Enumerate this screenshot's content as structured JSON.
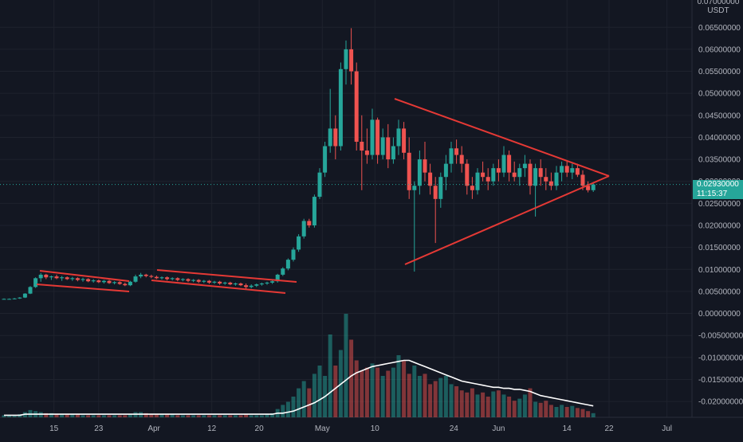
{
  "chart_data": {
    "type": "candlestick",
    "title": "",
    "unit_label": "USDT",
    "top_label": "0.07000000",
    "last_price": "0.02930000",
    "countdown": "11:15:37",
    "y_ticks": [
      "0.06500000",
      "0.06000000",
      "0.05500000",
      "0.05000000",
      "0.04500000",
      "0.04000000",
      "0.03500000",
      "0.03000000",
      "0.02500000",
      "0.02000000",
      "0.01500000",
      "0.01000000",
      "0.00500000",
      "0.00000000",
      "-0.00500000",
      "-0.01000000",
      "-0.01500000",
      "-0.02000000"
    ],
    "x_ticks": [
      "15",
      "23",
      "Apr",
      "12",
      "20",
      "May",
      "10",
      "24",
      "Jun",
      "14",
      "22",
      "Jul"
    ],
    "ylim": [
      -0.0236,
      0.0712
    ],
    "colors": {
      "up": "#26a69a",
      "down": "#ef5350",
      "trend": "#e53935",
      "volume_ma": "#ffffff"
    },
    "candles": [
      [
        0.0033,
        0.0034,
        0.0032,
        0.0033
      ],
      [
        0.0033,
        0.0034,
        0.0032,
        0.0033
      ],
      [
        0.0033,
        0.0035,
        0.0032,
        0.0034
      ],
      [
        0.0034,
        0.0037,
        0.0033,
        0.0036
      ],
      [
        0.0036,
        0.0046,
        0.0035,
        0.0045
      ],
      [
        0.0045,
        0.0062,
        0.0044,
        0.006
      ],
      [
        0.006,
        0.0082,
        0.0058,
        0.008
      ],
      [
        0.008,
        0.0092,
        0.0072,
        0.0088
      ],
      [
        0.0088,
        0.009,
        0.0078,
        0.0082
      ],
      [
        0.0082,
        0.0086,
        0.0076,
        0.0084
      ],
      [
        0.0084,
        0.0088,
        0.0078,
        0.008
      ],
      [
        0.008,
        0.0085,
        0.0074,
        0.0082
      ],
      [
        0.0082,
        0.0084,
        0.0076,
        0.0078
      ],
      [
        0.0078,
        0.0083,
        0.0074,
        0.008
      ],
      [
        0.008,
        0.0082,
        0.0073,
        0.0076
      ],
      [
        0.0076,
        0.0081,
        0.0072,
        0.0078
      ],
      [
        0.0078,
        0.008,
        0.0071,
        0.0073
      ],
      [
        0.0073,
        0.0078,
        0.007,
        0.0075
      ],
      [
        0.0075,
        0.0077,
        0.0069,
        0.0071
      ],
      [
        0.0071,
        0.0076,
        0.0068,
        0.0074
      ],
      [
        0.0074,
        0.0076,
        0.0067,
        0.0069
      ],
      [
        0.0069,
        0.0073,
        0.0066,
        0.0071
      ],
      [
        0.0071,
        0.0073,
        0.0065,
        0.0067
      ],
      [
        0.0067,
        0.007,
        0.0062,
        0.0064
      ],
      [
        0.0064,
        0.0074,
        0.0062,
        0.0072
      ],
      [
        0.0072,
        0.0088,
        0.007,
        0.0084
      ],
      [
        0.0084,
        0.0092,
        0.008,
        0.0088
      ],
      [
        0.0088,
        0.009,
        0.0082,
        0.0085
      ],
      [
        0.0085,
        0.0088,
        0.008,
        0.0083
      ],
      [
        0.0083,
        0.0086,
        0.0078,
        0.008
      ],
      [
        0.008,
        0.0084,
        0.0077,
        0.0082
      ],
      [
        0.0082,
        0.0084,
        0.0075,
        0.0078
      ],
      [
        0.0078,
        0.0082,
        0.0075,
        0.008
      ],
      [
        0.008,
        0.0082,
        0.0073,
        0.0076
      ],
      [
        0.0076,
        0.008,
        0.0073,
        0.0078
      ],
      [
        0.0078,
        0.008,
        0.0071,
        0.0074
      ],
      [
        0.0074,
        0.0078,
        0.0071,
        0.0076
      ],
      [
        0.0076,
        0.0078,
        0.0069,
        0.0072
      ],
      [
        0.0072,
        0.0076,
        0.0069,
        0.0074
      ],
      [
        0.0074,
        0.0076,
        0.0067,
        0.007
      ],
      [
        0.007,
        0.0074,
        0.0067,
        0.0072
      ],
      [
        0.0072,
        0.0074,
        0.0065,
        0.0068
      ],
      [
        0.0068,
        0.0072,
        0.0065,
        0.007
      ],
      [
        0.007,
        0.0072,
        0.0064,
        0.0066
      ],
      [
        0.0066,
        0.007,
        0.0063,
        0.0068
      ],
      [
        0.0068,
        0.007,
        0.0062,
        0.0064
      ],
      [
        0.0064,
        0.0068,
        0.0056,
        0.006
      ],
      [
        0.006,
        0.0066,
        0.0057,
        0.0063
      ],
      [
        0.0063,
        0.0068,
        0.006,
        0.0066
      ],
      [
        0.0066,
        0.007,
        0.0063,
        0.0068
      ],
      [
        0.0068,
        0.0072,
        0.0065,
        0.007
      ],
      [
        0.007,
        0.0075,
        0.0067,
        0.0073
      ],
      [
        0.0073,
        0.009,
        0.007,
        0.0088
      ],
      [
        0.0088,
        0.0105,
        0.0085,
        0.0102
      ],
      [
        0.0102,
        0.0125,
        0.0098,
        0.0122
      ],
      [
        0.0122,
        0.015,
        0.0118,
        0.0145
      ],
      [
        0.0145,
        0.018,
        0.014,
        0.0175
      ],
      [
        0.0175,
        0.0215,
        0.017,
        0.021
      ],
      [
        0.021,
        0.0215,
        0.0195,
        0.02
      ],
      [
        0.02,
        0.027,
        0.0195,
        0.0265
      ],
      [
        0.0265,
        0.033,
        0.026,
        0.032
      ],
      [
        0.032,
        0.039,
        0.031,
        0.038
      ],
      [
        0.038,
        0.051,
        0.0365,
        0.042
      ],
      [
        0.042,
        0.045,
        0.035,
        0.038
      ],
      [
        0.038,
        0.057,
        0.037,
        0.0555
      ],
      [
        0.0555,
        0.062,
        0.052,
        0.06
      ],
      [
        0.06,
        0.0648,
        0.052,
        0.055
      ],
      [
        0.055,
        0.057,
        0.037,
        0.039
      ],
      [
        0.039,
        0.045,
        0.028,
        0.037
      ],
      [
        0.037,
        0.042,
        0.034,
        0.036
      ],
      [
        0.036,
        0.0465,
        0.035,
        0.044
      ],
      [
        0.044,
        0.0445,
        0.034,
        0.036
      ],
      [
        0.036,
        0.042,
        0.035,
        0.04
      ],
      [
        0.04,
        0.043,
        0.033,
        0.035
      ],
      [
        0.035,
        0.04,
        0.034,
        0.038
      ],
      [
        0.038,
        0.044,
        0.036,
        0.042
      ],
      [
        0.042,
        0.0435,
        0.035,
        0.0365
      ],
      [
        0.0365,
        0.04,
        0.026,
        0.028
      ],
      [
        0.028,
        0.03,
        0.0095,
        0.029
      ],
      [
        0.029,
        0.037,
        0.027,
        0.035
      ],
      [
        0.035,
        0.039,
        0.03,
        0.032
      ],
      [
        0.032,
        0.034,
        0.027,
        0.029
      ],
      [
        0.029,
        0.031,
        0.016,
        0.026
      ],
      [
        0.026,
        0.032,
        0.024,
        0.031
      ],
      [
        0.031,
        0.036,
        0.028,
        0.034
      ],
      [
        0.034,
        0.039,
        0.032,
        0.0375
      ],
      [
        0.0375,
        0.0395,
        0.034,
        0.036
      ],
      [
        0.036,
        0.038,
        0.032,
        0.034
      ],
      [
        0.034,
        0.035,
        0.027,
        0.029
      ],
      [
        0.029,
        0.031,
        0.026,
        0.028
      ],
      [
        0.028,
        0.033,
        0.027,
        0.032
      ],
      [
        0.032,
        0.0345,
        0.03,
        0.031
      ],
      [
        0.031,
        0.033,
        0.028,
        0.03
      ],
      [
        0.03,
        0.034,
        0.029,
        0.033
      ],
      [
        0.033,
        0.035,
        0.03,
        0.032
      ],
      [
        0.032,
        0.038,
        0.031,
        0.036
      ],
      [
        0.036,
        0.037,
        0.03,
        0.032
      ],
      [
        0.032,
        0.0345,
        0.03,
        0.031
      ],
      [
        0.031,
        0.034,
        0.029,
        0.033
      ],
      [
        0.033,
        0.036,
        0.031,
        0.034
      ],
      [
        0.034,
        0.035,
        0.027,
        0.029
      ],
      [
        0.029,
        0.034,
        0.022,
        0.033
      ],
      [
        0.033,
        0.035,
        0.029,
        0.031
      ],
      [
        0.031,
        0.033,
        0.028,
        0.03
      ],
      [
        0.03,
        0.032,
        0.028,
        0.029
      ],
      [
        0.029,
        0.0335,
        0.028,
        0.032
      ],
      [
        0.032,
        0.0345,
        0.03,
        0.0335
      ],
      [
        0.0335,
        0.0345,
        0.031,
        0.032
      ],
      [
        0.032,
        0.034,
        0.0305,
        0.033
      ],
      [
        0.033,
        0.034,
        0.031,
        0.0315
      ],
      [
        0.0315,
        0.0325,
        0.028,
        0.029
      ],
      [
        0.029,
        0.03,
        0.0275,
        0.028
      ],
      [
        0.028,
        0.0298,
        0.0276,
        0.0293
      ]
    ],
    "volume": [
      0.2,
      0.2,
      0.2,
      0.3,
      0.5,
      0.7,
      0.6,
      0.5,
      0.4,
      0.4,
      0.3,
      0.3,
      0.3,
      0.3,
      0.3,
      0.2,
      0.2,
      0.2,
      0.2,
      0.2,
      0.2,
      0.2,
      0.2,
      0.2,
      0.3,
      0.5,
      0.5,
      0.4,
      0.3,
      0.3,
      0.3,
      0.3,
      0.3,
      0.2,
      0.2,
      0.2,
      0.2,
      0.2,
      0.2,
      0.2,
      0.2,
      0.2,
      0.2,
      0.2,
      0.2,
      0.2,
      0.3,
      0.2,
      0.2,
      0.2,
      0.3,
      0.4,
      0.8,
      1.2,
      1.5,
      2.0,
      2.8,
      3.5,
      2.8,
      4.2,
      5.0,
      4.0,
      8.0,
      5.0,
      6.5,
      10.0,
      7.5,
      5.5,
      4.5,
      4.8,
      5.2,
      4.8,
      4.0,
      4.5,
      4.8,
      6.0,
      5.5,
      4.2,
      5.0,
      4.0,
      4.2,
      3.2,
      3.5,
      3.8,
      4.0,
      3.2,
      3.0,
      2.6,
      2.4,
      2.8,
      2.2,
      2.4,
      2.0,
      2.5,
      2.6,
      2.2,
      2.0,
      1.6,
      1.8,
      2.2,
      2.8,
      1.5,
      1.4,
      1.6,
      1.2,
      1.0,
      1.2,
      1.0,
      1.1,
      0.9,
      0.8,
      0.6,
      0.4
    ],
    "volume_ma": [
      0.2,
      0.2,
      0.2,
      0.2,
      0.3,
      0.3,
      0.3,
      0.3,
      0.3,
      0.3,
      0.3,
      0.3,
      0.3,
      0.3,
      0.3,
      0.3,
      0.3,
      0.3,
      0.3,
      0.3,
      0.3,
      0.3,
      0.3,
      0.3,
      0.3,
      0.3,
      0.3,
      0.3,
      0.3,
      0.3,
      0.3,
      0.3,
      0.3,
      0.3,
      0.3,
      0.3,
      0.3,
      0.3,
      0.3,
      0.3,
      0.3,
      0.3,
      0.3,
      0.3,
      0.3,
      0.3,
      0.3,
      0.3,
      0.3,
      0.3,
      0.3,
      0.3,
      0.4,
      0.4,
      0.5,
      0.6,
      0.8,
      1.0,
      1.2,
      1.4,
      1.7,
      2.0,
      2.4,
      2.8,
      3.2,
      3.6,
      4.0,
      4.3,
      4.5,
      4.7,
      4.9,
      5.0,
      5.1,
      5.2,
      5.3,
      5.4,
      5.5,
      5.5,
      5.3,
      5.1,
      4.9,
      4.7,
      4.5,
      4.3,
      4.1,
      3.9,
      3.7,
      3.5,
      3.4,
      3.3,
      3.2,
      3.1,
      3.0,
      2.9,
      2.9,
      2.8,
      2.8,
      2.7,
      2.7,
      2.6,
      2.5,
      2.3,
      2.1,
      2.0,
      1.9,
      1.8,
      1.7,
      1.6,
      1.5,
      1.4,
      1.3,
      1.2,
      1.1
    ]
  }
}
